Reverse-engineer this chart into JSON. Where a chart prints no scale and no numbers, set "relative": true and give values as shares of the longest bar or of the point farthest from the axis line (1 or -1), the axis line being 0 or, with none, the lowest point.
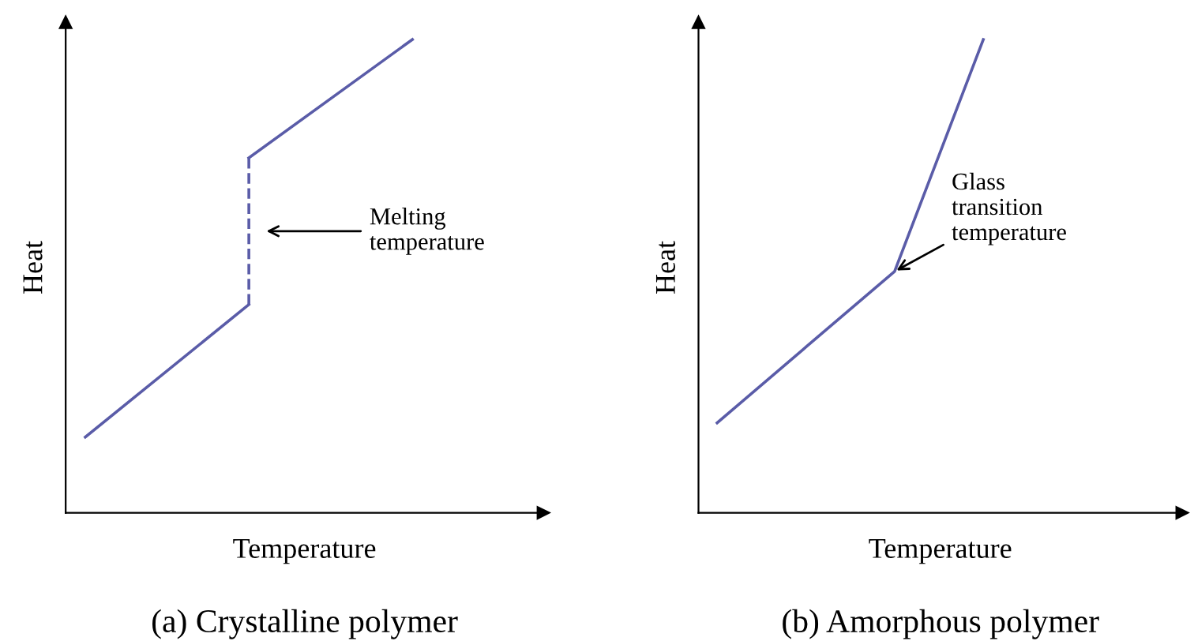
{
  "chart_data": [
    {
      "type": "line",
      "title": "(a) Crystalline polymer",
      "xlabel": "Temperature",
      "ylabel": "Heat",
      "relative": true,
      "categories": [
        null,
        null,
        null
      ],
      "series": [
        {
          "color": "#5a5ca8",
          "values": [
            0.16,
            0.44,
            null
          ]
        },
        {
          "color": "#5a5ca8",
          "values": [
            null,
            0.75,
            1.0
          ]
        }
      ],
      "annotations": [
        "Melting\ntemperature"
      ]
    },
    {
      "type": "line",
      "title": "(b) Amorphous polymer",
      "xlabel": "Temperature",
      "ylabel": "Heat",
      "relative": true,
      "categories": [
        null,
        null,
        null,
        null
      ],
      "series": [
        {
          "color": "#5a5ca8",
          "values": [
            0.19,
            0.35,
            0.51,
            1.0
          ]
        }
      ],
      "annotations": [
        "Glass\ntransition\ntemperature"
      ]
    }
  ]
}
